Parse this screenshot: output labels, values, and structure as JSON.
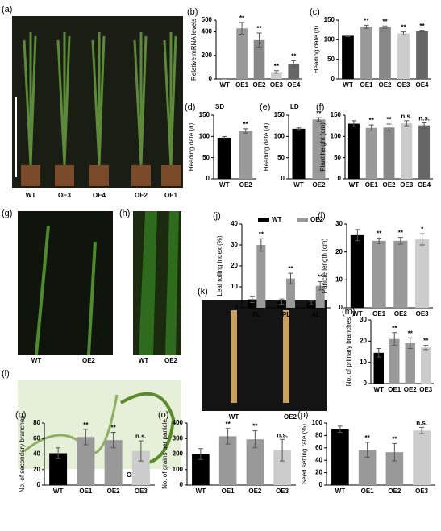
{
  "photos": [
    {
      "panel": "(a)",
      "labels": [
        "WT",
        "OE3",
        "OE4",
        "OE2",
        "OE1"
      ]
    },
    {
      "panel": "(g)",
      "labels": [
        "WT",
        "OE2"
      ]
    },
    {
      "panel": "(h)",
      "labels": [
        "WT",
        "OE2"
      ]
    },
    {
      "panel": "(i)",
      "labels": [
        "WT",
        "OE2"
      ]
    },
    {
      "panel": "(k)",
      "labels": [
        "WT",
        "OE2"
      ]
    }
  ],
  "chart_data": [
    {
      "type": "bar",
      "panel": "(b)",
      "ylabel": "Relative mRNA levels",
      "categories": [
        "WT",
        "OE1",
        "OE2",
        "OE3",
        "OE4"
      ],
      "values": [
        1,
        430,
        330,
        60,
        130
      ],
      "errors": [
        1,
        50,
        60,
        10,
        25
      ],
      "colors": [
        "#000000",
        "#999999",
        "#888888",
        "#cccccc",
        "#666666"
      ],
      "annotations": [
        null,
        "**",
        "**",
        "**",
        "**"
      ],
      "ylim": [
        0,
        500
      ],
      "yticks": [
        0,
        200,
        400,
        500
      ]
    },
    {
      "type": "bar",
      "panel": "(c)",
      "ylabel": "Heading date (d)",
      "categories": [
        "WT",
        "OE1",
        "OE2",
        "OE3",
        "OE4"
      ],
      "values": [
        110,
        133,
        132,
        116,
        122
      ],
      "errors": [
        2,
        4,
        3,
        4,
        2
      ],
      "colors": [
        "#000000",
        "#999999",
        "#888888",
        "#cccccc",
        "#666666"
      ],
      "annotations": [
        null,
        "**",
        "**",
        "**",
        "**"
      ],
      "ylim": [
        0,
        150
      ],
      "yticks": [
        0,
        50,
        100,
        150
      ]
    },
    {
      "type": "bar",
      "panel": "(d)",
      "title": "SD",
      "ylabel": "Heading date (d)",
      "categories": [
        "WT",
        "OE2"
      ],
      "values": [
        97,
        113
      ],
      "errors": [
        3,
        5
      ],
      "colors": [
        "#000000",
        "#999999"
      ],
      "annotations": [
        null,
        "**"
      ],
      "ylim": [
        0,
        150
      ],
      "yticks": [
        0,
        50,
        100,
        150
      ]
    },
    {
      "type": "bar",
      "panel": "(e)",
      "title": "LD",
      "ylabel": "Heading date (d)",
      "categories": [
        "WT",
        "OE2"
      ],
      "values": [
        118,
        140
      ],
      "errors": [
        2,
        4
      ],
      "colors": [
        "#000000",
        "#999999"
      ],
      "annotations": [
        null,
        "**"
      ],
      "ylim": [
        0,
        150
      ],
      "yticks": [
        0,
        50,
        100,
        150
      ]
    },
    {
      "type": "bar",
      "panel": "(f)",
      "ylabel": "Plant height (cm)",
      "categories": [
        "WT",
        "OE1",
        "OE2",
        "OE3",
        "OE4"
      ],
      "values": [
        130,
        120,
        121,
        131,
        126
      ],
      "errors": [
        7,
        7,
        8,
        6,
        6
      ],
      "colors": [
        "#000000",
        "#999999",
        "#888888",
        "#cccccc",
        "#666666"
      ],
      "annotations": [
        null,
        "**",
        "**",
        "n.s.",
        "n.s."
      ],
      "ylim": [
        0,
        150
      ],
      "yticks": [
        0,
        50,
        100,
        150
      ]
    },
    {
      "type": "grouped_bar",
      "panel": "(j)",
      "ylabel": "Leaf rolling index (%)",
      "categories": [
        "FL",
        "PL",
        "AL"
      ],
      "series": [
        {
          "name": "WT",
          "color": "#000000",
          "values": [
            4,
            3,
            2.5
          ],
          "errors": [
            1.5,
            1.2,
            1
          ]
        },
        {
          "name": "OE2",
          "color": "#999999",
          "values": [
            30,
            14,
            10.5
          ],
          "errors": [
            3,
            2.5,
            2
          ],
          "annotations": [
            "**",
            "**",
            "**"
          ]
        }
      ],
      "ylim": [
        0,
        40
      ],
      "yticks": [
        0,
        10,
        20,
        30,
        40
      ],
      "legend": "top"
    },
    {
      "type": "bar",
      "panel": "(l)",
      "ylabel": "Panicle length (cm)",
      "categories": [
        "WT",
        "OE1",
        "OE2",
        "OE3"
      ],
      "values": [
        26,
        24,
        24,
        24.5
      ],
      "errors": [
        2,
        1,
        1.2,
        2
      ],
      "colors": [
        "#000000",
        "#999999",
        "#999999",
        "#cccccc"
      ],
      "annotations": [
        null,
        "**",
        "**",
        "*"
      ],
      "ylim": [
        0,
        30
      ],
      "yticks": [
        0,
        10,
        20,
        30
      ]
    },
    {
      "type": "bar",
      "panel": "(m)",
      "ylabel": "No. of primary branches",
      "categories": [
        "WT",
        "OE1",
        "OE2",
        "OE3"
      ],
      "values": [
        14.5,
        21,
        19,
        17
      ],
      "errors": [
        2,
        3,
        2.5,
        1
      ],
      "colors": [
        "#000000",
        "#999999",
        "#999999",
        "#cccccc"
      ],
      "annotations": [
        null,
        "**",
        "**",
        "**"
      ],
      "ylim": [
        0,
        30
      ],
      "yticks": [
        0,
        10,
        20,
        30
      ]
    },
    {
      "type": "bar",
      "panel": "(n)",
      "ylabel": "No. of secondary branches",
      "categories": [
        "WT",
        "OE1",
        "OE2",
        "OE3"
      ],
      "values": [
        41,
        62,
        58,
        44
      ],
      "errors": [
        7,
        10,
        10,
        13
      ],
      "colors": [
        "#000000",
        "#999999",
        "#999999",
        "#cccccc"
      ],
      "annotations": [
        null,
        "**",
        "**",
        "n.s."
      ],
      "ylim": [
        0,
        80
      ],
      "yticks": [
        0,
        20,
        40,
        60,
        80
      ]
    },
    {
      "type": "bar",
      "panel": "(o)",
      "ylabel": "No. of grains per panicle",
      "categories": [
        "WT",
        "OE1",
        "OE2",
        "OE3"
      ],
      "values": [
        200,
        315,
        295,
        225
      ],
      "errors": [
        35,
        50,
        55,
        70
      ],
      "colors": [
        "#000000",
        "#999999",
        "#999999",
        "#cccccc"
      ],
      "annotations": [
        null,
        "**",
        "**",
        "n.s."
      ],
      "ylim": [
        0,
        400
      ],
      "yticks": [
        0,
        100,
        200,
        300,
        400
      ]
    },
    {
      "type": "bar",
      "panel": "(p)",
      "ylabel": "Seed setting rate (%)",
      "categories": [
        "WT",
        "OE1",
        "OE2",
        "OE3"
      ],
      "values": [
        90,
        57,
        53,
        88
      ],
      "errors": [
        5,
        12,
        14,
        5
      ],
      "colors": [
        "#000000",
        "#999999",
        "#999999",
        "#cccccc"
      ],
      "annotations": [
        null,
        "**",
        "**",
        "n.s."
      ],
      "ylim": [
        0,
        100
      ],
      "yticks": [
        0,
        20,
        40,
        60,
        80,
        100
      ]
    }
  ]
}
